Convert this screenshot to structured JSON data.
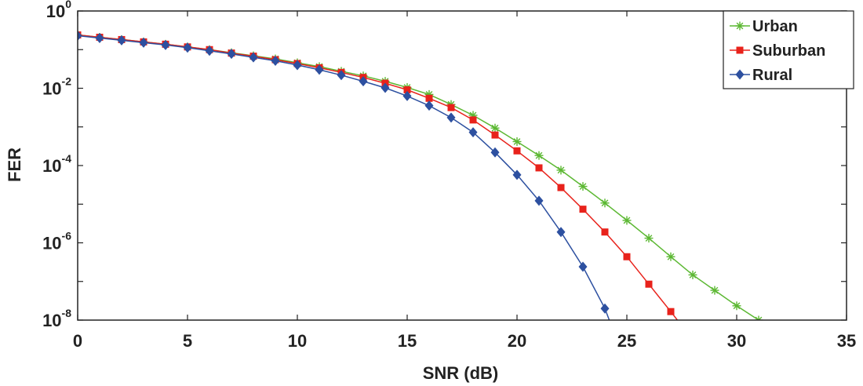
{
  "chart_data": {
    "type": "line",
    "title": "",
    "xlabel": "SNR (dB)",
    "ylabel": "FER",
    "xlim": [
      0,
      35
    ],
    "ylim_log10": [
      -8,
      0
    ],
    "yscale": "log",
    "x_ticks": [
      0,
      5,
      10,
      15,
      20,
      25,
      30,
      35
    ],
    "y_ticks": [
      {
        "base": "10",
        "exp": "0",
        "value_log10": 0
      },
      {
        "base": "10",
        "exp": "-2",
        "value_log10": -2
      },
      {
        "base": "10",
        "exp": "-4",
        "value_log10": -4
      },
      {
        "base": "10",
        "exp": "-6",
        "value_log10": -6
      },
      {
        "base": "10",
        "exp": "-8",
        "value_log10": -8
      }
    ],
    "legend_position": "top-right",
    "series": [
      {
        "name": "Urban",
        "color": "#5cb833",
        "marker": "asterisk",
        "x": [
          0,
          1,
          2,
          3,
          4,
          5,
          6,
          7,
          8,
          9,
          10,
          11,
          12,
          13,
          14,
          15,
          16,
          17,
          18,
          19,
          20,
          21,
          22,
          23,
          24,
          25,
          26,
          27,
          28,
          29,
          30,
          31
        ],
        "log10_fer": [
          -0.62,
          -0.68,
          -0.74,
          -0.8,
          -0.86,
          -0.93,
          -1.0,
          -1.08,
          -1.16,
          -1.24,
          -1.34,
          -1.44,
          -1.56,
          -1.68,
          -1.82,
          -1.98,
          -2.16,
          -2.42,
          -2.7,
          -3.03,
          -3.38,
          -3.74,
          -4.12,
          -4.54,
          -4.97,
          -5.42,
          -5.88,
          -6.36,
          -6.83,
          -7.23,
          -7.63,
          -8.0
        ]
      },
      {
        "name": "Suburban",
        "color": "#e8221b",
        "marker": "square",
        "x": [
          0,
          1,
          2,
          3,
          4,
          5,
          6,
          7,
          8,
          9,
          10,
          11,
          12,
          13,
          14,
          15,
          16,
          17,
          18,
          19,
          20,
          21,
          22,
          23,
          24,
          25,
          26,
          27,
          27.3
        ],
        "log10_fer": [
          -0.62,
          -0.68,
          -0.74,
          -0.8,
          -0.86,
          -0.93,
          -1.0,
          -1.09,
          -1.17,
          -1.26,
          -1.36,
          -1.47,
          -1.59,
          -1.72,
          -1.87,
          -2.04,
          -2.26,
          -2.5,
          -2.82,
          -3.21,
          -3.62,
          -4.06,
          -4.57,
          -5.13,
          -5.72,
          -6.36,
          -7.07,
          -7.78,
          -8.0
        ]
      },
      {
        "name": "Rural",
        "color": "#2d50a0",
        "marker": "diamond",
        "x": [
          0,
          1,
          2,
          3,
          4,
          5,
          6,
          7,
          8,
          9,
          10,
          11,
          12,
          13,
          14,
          15,
          16,
          17,
          18,
          19,
          20,
          21,
          22,
          23,
          24,
          24.2
        ],
        "log10_fer": [
          -0.64,
          -0.7,
          -0.76,
          -0.82,
          -0.88,
          -0.95,
          -1.03,
          -1.11,
          -1.2,
          -1.29,
          -1.4,
          -1.52,
          -1.66,
          -1.82,
          -1.99,
          -2.2,
          -2.45,
          -2.76,
          -3.14,
          -3.66,
          -4.24,
          -4.91,
          -5.72,
          -6.62,
          -7.7,
          -8.0
        ]
      }
    ]
  }
}
